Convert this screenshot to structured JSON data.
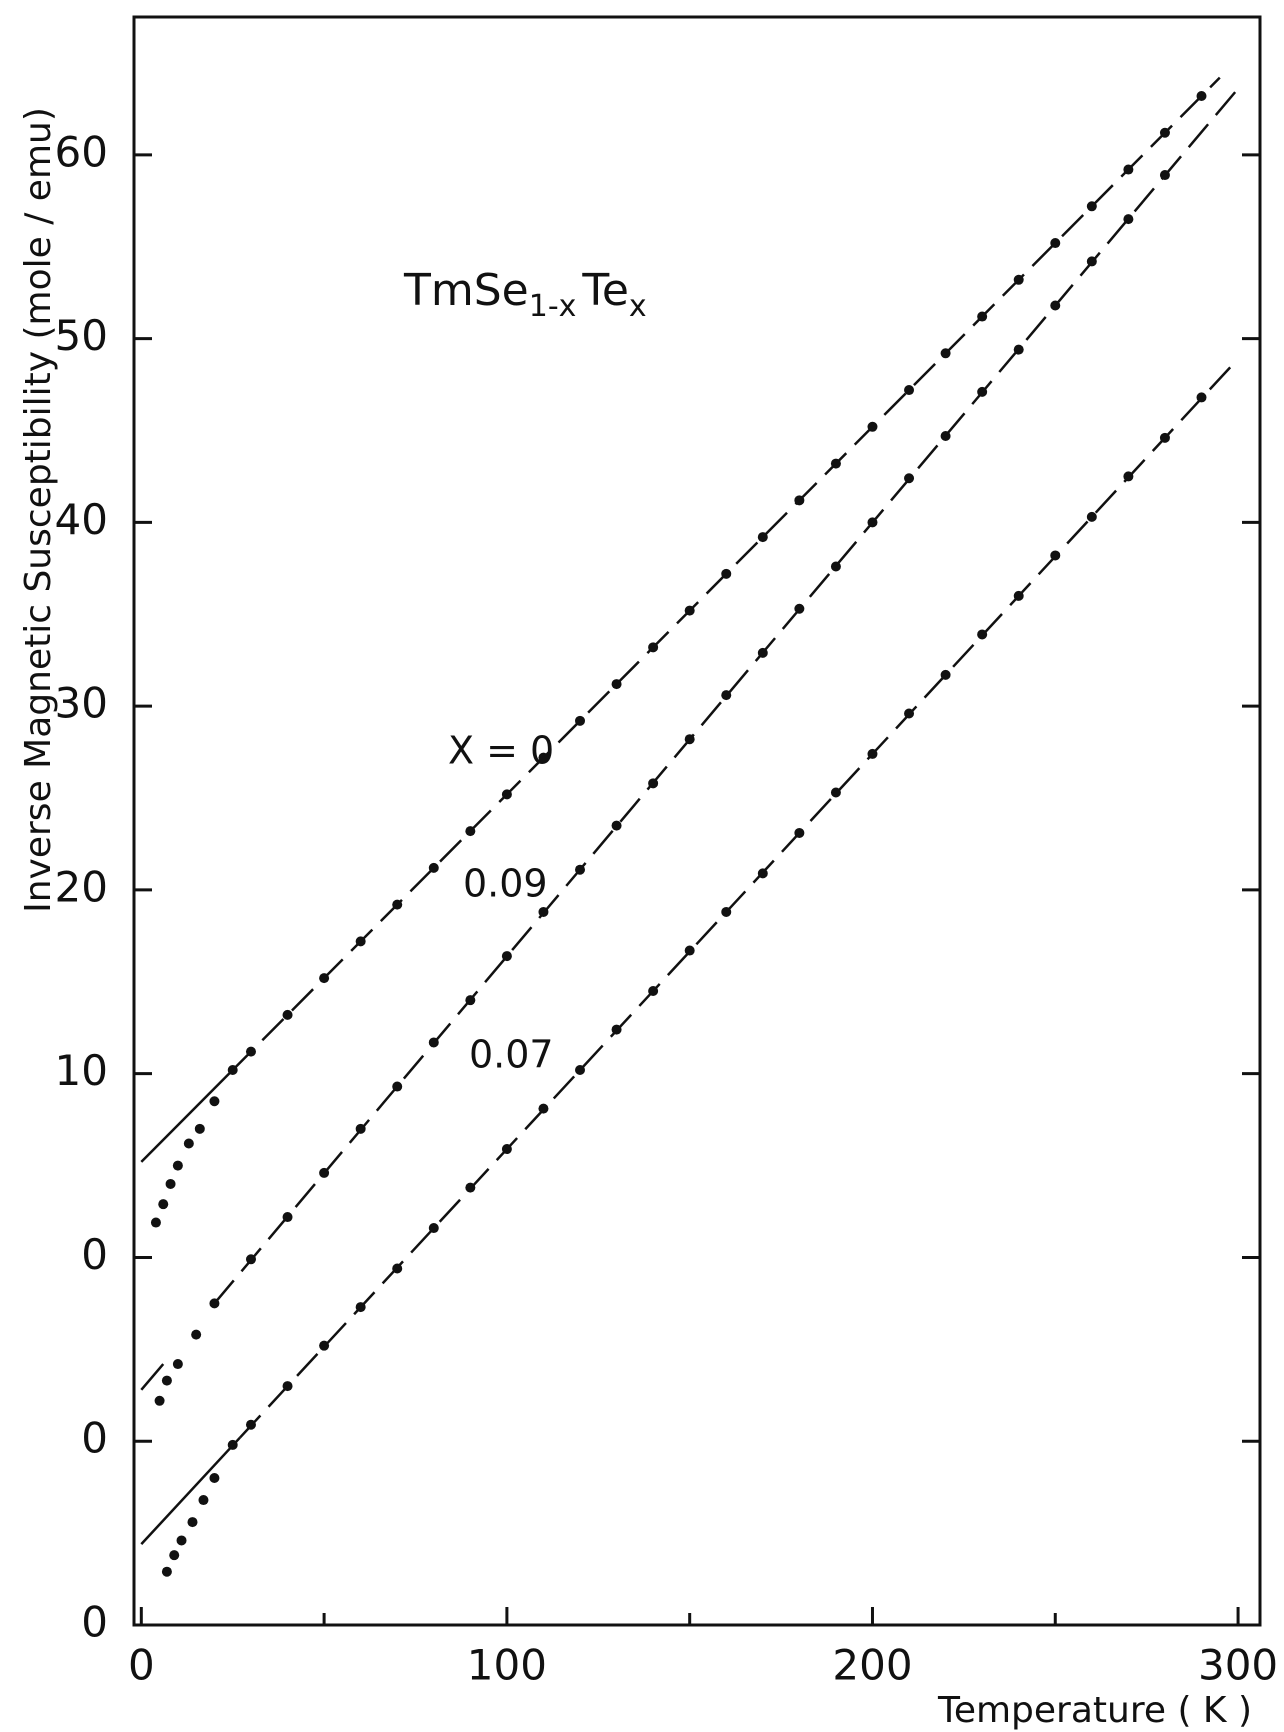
{
  "chart_data": {
    "type": "scatter",
    "title_parts": [
      "TmSe",
      "1-x",
      "Te",
      "x"
    ],
    "xlabel": "Temperature  ( K )",
    "ylabel": "Inverse  Magnetic  Susceptibility  (mole / emu)",
    "annotations": [
      "X = 0",
      "0.09",
      "0.07"
    ],
    "xlim": [
      -2,
      306
    ],
    "ylim": [
      0,
      87.5
    ],
    "xticks": [
      0,
      100,
      200,
      300
    ],
    "xminor": [
      50,
      150,
      250
    ],
    "yticks": [
      0,
      {
        "value": 10,
        "label": "0"
      },
      {
        "value": 20,
        "label": "0"
      },
      {
        "value": 30,
        "label": "10"
      },
      {
        "value": 40,
        "label": "20"
      },
      {
        "value": 50,
        "label": "30"
      },
      {
        "value": 60,
        "label": "40"
      },
      {
        "value": 70,
        "label": "50"
      },
      {
        "value": 80,
        "label": "60"
      }
    ],
    "color": "#111111",
    "series": [
      {
        "x": [
          4,
          6,
          8,
          10,
          13,
          16,
          20,
          25,
          30,
          40,
          50,
          60,
          70,
          80,
          90,
          100,
          110,
          120,
          130,
          140,
          150,
          160,
          170,
          180,
          190,
          200,
          210,
          220,
          230,
          240,
          250,
          260,
          270,
          280,
          290
        ],
        "values": [
          21.9,
          22.9,
          24,
          25,
          26.2,
          27,
          28.5,
          30.2,
          31.2,
          33.2,
          35.2,
          37.2,
          39.2,
          41.2,
          43.2,
          45.2,
          47.2,
          49.2,
          51.2,
          53.2,
          55.2,
          57.2,
          59.2,
          61.2,
          63.2,
          65.2,
          67.2,
          69.2,
          71.2,
          73.2,
          75.2,
          77.2,
          79.2,
          81.2,
          83.2
        ]
      },
      {
        "x": [
          5,
          7,
          10,
          15,
          20,
          30,
          40,
          50,
          60,
          70,
          80,
          90,
          100,
          110,
          120,
          130,
          140,
          150,
          160,
          170,
          180,
          190,
          200,
          210,
          220,
          230,
          240,
          250,
          260,
          270,
          280
        ],
        "values": [
          12.2,
          13.3,
          14.2,
          15.8,
          17.5,
          19.9,
          22.2,
          24.6,
          27.0,
          29.3,
          31.7,
          34.0,
          36.4,
          38.8,
          41.1,
          43.5,
          45.8,
          48.2,
          50.6,
          52.9,
          55.3,
          57.6,
          60.0,
          62.4,
          64.7,
          67.1,
          69.4,
          71.8,
          74.2,
          76.5,
          78.9
        ]
      },
      {
        "x": [
          7,
          9,
          11,
          14,
          17,
          20,
          25,
          30,
          40,
          50,
          60,
          70,
          80,
          90,
          100,
          110,
          120,
          130,
          140,
          150,
          160,
          170,
          180,
          190,
          200,
          210,
          220,
          230,
          240,
          250,
          260,
          270,
          280,
          290
        ],
        "values": [
          2.9,
          3.8,
          4.6,
          5.6,
          6.8,
          8.0,
          9.8,
          10.9,
          13.0,
          15.2,
          17.3,
          19.4,
          21.6,
          23.8,
          25.9,
          28.1,
          30.2,
          32.4,
          34.5,
          36.7,
          38.8,
          40.9,
          43.1,
          45.3,
          47.4,
          49.6,
          51.7,
          53.9,
          56.0,
          58.2,
          60.3,
          62.5,
          64.6,
          66.8
        ]
      }
    ],
    "fit_lines": [
      {
        "style": "solid",
        "x": [
          0,
          25
        ],
        "values": [
          25.2,
          30.2
        ]
      },
      {
        "style": "solid",
        "x": [
          0,
          6
        ],
        "values": [
          12.8,
          14.2
        ]
      },
      {
        "style": "solid",
        "x": [
          0,
          27
        ],
        "values": [
          4.4,
          10.2
        ]
      },
      {
        "style": "dashed",
        "x": [
          25,
          295
        ],
        "values": [
          30.2,
          84.2
        ]
      },
      {
        "style": "dashed",
        "x": [
          20,
          300
        ],
        "values": [
          17.5,
          83.6
        ]
      },
      {
        "style": "dashed",
        "x": [
          27,
          300
        ],
        "values": [
          10.2,
          68.9
        ]
      }
    ]
  }
}
